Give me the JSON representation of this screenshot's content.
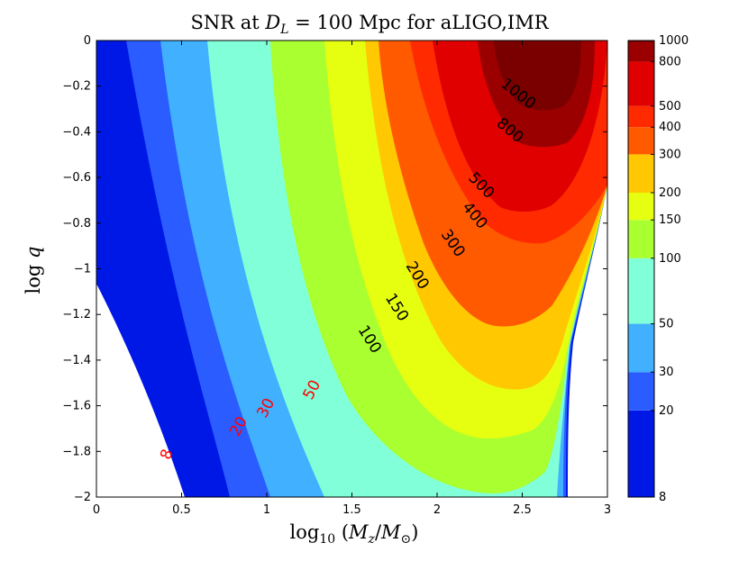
{
  "chart_data": {
    "type": "contour",
    "title": "SNR at D_L = 100 Mpc for aLIGO,IMR",
    "title_parts": [
      "SNR at ",
      "D",
      "L",
      " = 100 Mpc for aLIGO,IMR"
    ],
    "xlabel": "log_10 (M_z/M_⊙)",
    "xlabel_parts": [
      "log",
      "10",
      " (",
      "M",
      "z",
      "/",
      "M",
      "⊙",
      ")"
    ],
    "ylabel": "log q",
    "ylabel_parts": [
      "log ",
      "q"
    ],
    "xlim": [
      0,
      3
    ],
    "ylim": [
      -2,
      0
    ],
    "xticks": [
      0,
      0.5,
      1,
      1.5,
      2,
      2.5,
      3
    ],
    "xtick_labels": [
      "0",
      "0.5",
      "1",
      "1.5",
      "2",
      "2.5",
      "3"
    ],
    "yticks": [
      0,
      -0.2,
      -0.4,
      -0.6,
      -0.8,
      -1,
      -1.2,
      -1.4,
      -1.6,
      -1.8,
      -2
    ],
    "ytick_labels": [
      "0",
      "−0.2",
      "−0.4",
      "−0.6",
      "−0.8",
      "−1",
      "−1.2",
      "−1.4",
      "−1.6",
      "−1.8",
      "−2"
    ],
    "levels": [
      8,
      20,
      30,
      50,
      100,
      150,
      200,
      300,
      400,
      500,
      800,
      1000
    ],
    "level_colors": [
      "#0018e6",
      "#2a5cff",
      "#40b0ff",
      "#80ffd8",
      "#aaff30",
      "#e6ff10",
      "#ffc800",
      "#ff5a00",
      "#ff2a00",
      "#e00000",
      "#9b0000",
      "#7a0000"
    ],
    "colorbar": {
      "scale": "log",
      "range": [
        8,
        1000
      ],
      "tick_values": [
        8,
        20,
        30,
        50,
        100,
        150,
        200,
        300,
        400,
        500,
        800,
        1000
      ],
      "tick_labels": [
        "8",
        "20",
        "30",
        "50",
        "100",
        "150",
        "200",
        "300",
        "400",
        "500",
        "800",
        "1000"
      ]
    },
    "contour_labels": [
      {
        "text": "8",
        "x": 0.44,
        "y": -1.82,
        "color": "#ff0000"
      },
      {
        "text": "20",
        "x": 0.86,
        "y": -1.7,
        "color": "#ff0000"
      },
      {
        "text": "30",
        "x": 1.02,
        "y": -1.62,
        "color": "#ff0000"
      },
      {
        "text": "50",
        "x": 1.29,
        "y": -1.54,
        "color": "#ff0000"
      },
      {
        "text": "100",
        "x": 1.58,
        "y": -1.32,
        "color": "#000000"
      },
      {
        "text": "150",
        "x": 1.74,
        "y": -1.18,
        "color": "#000000"
      },
      {
        "text": "200",
        "x": 1.86,
        "y": -1.04,
        "color": "#000000"
      },
      {
        "text": "300",
        "x": 2.07,
        "y": -0.9,
        "color": "#000000"
      },
      {
        "text": "400",
        "x": 2.2,
        "y": -0.78,
        "color": "#000000"
      },
      {
        "text": "500",
        "x": 2.24,
        "y": -0.65,
        "color": "#000000"
      },
      {
        "text": "800",
        "x": 2.41,
        "y": -0.41,
        "color": "#000000"
      },
      {
        "text": "1000",
        "x": 2.46,
        "y": -0.25,
        "color": "#000000"
      }
    ]
  }
}
